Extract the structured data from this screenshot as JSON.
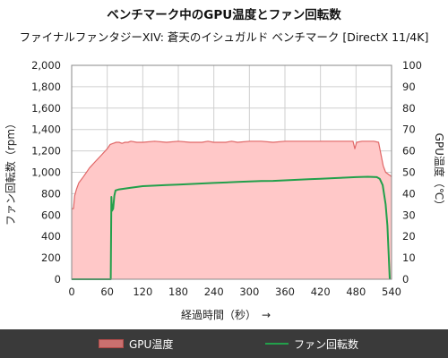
{
  "chart_data": {
    "type": "area",
    "title": "ベンチマーク中のGPU温度とファン回転数",
    "subtitle": "ファイナルファンタジーXIV: 蒼天のイシュガルド ベンチマーク [DirectX 11/4K]",
    "xlabel": "経過時間（秒）　→",
    "ylabel_left": "ファン回転数（rpm）",
    "ylabel_right": "GPU温度（℃）",
    "xlim": [
      0,
      540
    ],
    "ylim_left": [
      0,
      2000
    ],
    "ylim_right": [
      0,
      100
    ],
    "x_ticks": [
      "0",
      "60",
      "120",
      "180",
      "240",
      "300",
      "360",
      "420",
      "480",
      "540"
    ],
    "y_left_ticks": [
      "0",
      "200",
      "400",
      "600",
      "800",
      "1,000",
      "1,200",
      "1,400",
      "1,600",
      "1,800",
      "2,000"
    ],
    "y_right_ticks": [
      "0",
      "10",
      "20",
      "30",
      "40",
      "50",
      "60",
      "70",
      "80",
      "90",
      "100"
    ],
    "grid": true,
    "legend_position": "bottom",
    "series": [
      {
        "name": "GPU温度",
        "axis": "right",
        "style": "area",
        "color": "#e06666",
        "fill": "#ffc8c8",
        "points": [
          [
            0,
            33
          ],
          [
            3,
            33
          ],
          [
            5,
            39
          ],
          [
            8,
            42
          ],
          [
            12,
            45
          ],
          [
            20,
            48
          ],
          [
            30,
            52
          ],
          [
            40,
            55
          ],
          [
            50,
            58
          ],
          [
            60,
            61
          ],
          [
            65,
            63
          ],
          [
            70,
            63.5
          ],
          [
            75,
            64
          ],
          [
            80,
            64
          ],
          [
            85,
            63.5
          ],
          [
            90,
            64
          ],
          [
            95,
            64
          ],
          [
            100,
            64.5
          ],
          [
            110,
            64
          ],
          [
            120,
            64
          ],
          [
            140,
            64.5
          ],
          [
            160,
            64
          ],
          [
            180,
            64.5
          ],
          [
            200,
            64
          ],
          [
            220,
            64
          ],
          [
            230,
            64.5
          ],
          [
            240,
            64
          ],
          [
            260,
            64
          ],
          [
            270,
            64.5
          ],
          [
            280,
            64
          ],
          [
            300,
            64.5
          ],
          [
            320,
            64.5
          ],
          [
            340,
            64
          ],
          [
            360,
            64.5
          ],
          [
            380,
            64.5
          ],
          [
            400,
            64.5
          ],
          [
            420,
            64.5
          ],
          [
            440,
            64.5
          ],
          [
            460,
            64.5
          ],
          [
            475,
            64.5
          ],
          [
            478,
            61
          ],
          [
            481,
            64
          ],
          [
            490,
            64.5
          ],
          [
            500,
            64.5
          ],
          [
            510,
            64.5
          ],
          [
            518,
            64
          ],
          [
            521,
            60
          ],
          [
            526,
            53
          ],
          [
            530,
            50
          ],
          [
            535,
            49
          ],
          [
            540,
            48
          ]
        ]
      },
      {
        "name": "ファン回転数",
        "axis": "left",
        "style": "line",
        "color": "#22a04b",
        "points": [
          [
            0,
            0
          ],
          [
            65,
            0
          ],
          [
            66,
            0
          ],
          [
            67,
            770
          ],
          [
            68,
            640
          ],
          [
            70,
            660
          ],
          [
            72,
            780
          ],
          [
            74,
            830
          ],
          [
            80,
            840
          ],
          [
            100,
            855
          ],
          [
            120,
            870
          ],
          [
            140,
            875
          ],
          [
            160,
            880
          ],
          [
            180,
            885
          ],
          [
            200,
            890
          ],
          [
            220,
            895
          ],
          [
            240,
            900
          ],
          [
            260,
            905
          ],
          [
            280,
            910
          ],
          [
            300,
            915
          ],
          [
            320,
            918
          ],
          [
            340,
            920
          ],
          [
            360,
            925
          ],
          [
            380,
            930
          ],
          [
            400,
            935
          ],
          [
            420,
            940
          ],
          [
            440,
            945
          ],
          [
            460,
            950
          ],
          [
            480,
            955
          ],
          [
            500,
            958
          ],
          [
            515,
            955
          ],
          [
            520,
            940
          ],
          [
            525,
            880
          ],
          [
            530,
            700
          ],
          [
            533,
            500
          ],
          [
            535,
            250
          ],
          [
            537,
            0
          ]
        ]
      }
    ]
  }
}
